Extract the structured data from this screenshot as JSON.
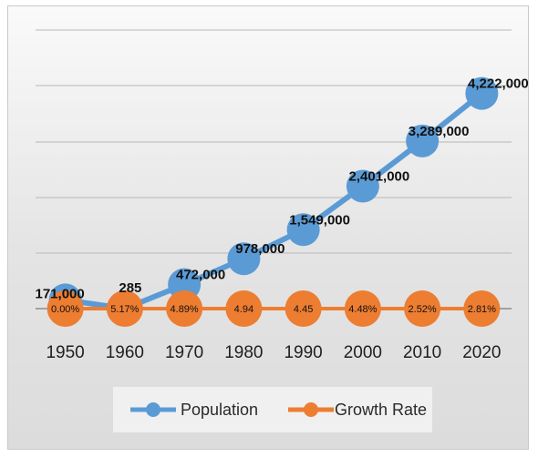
{
  "chart_data": {
    "type": "line",
    "title": "",
    "xlabel": "",
    "ylabel": "",
    "grid": true,
    "legend_position": "bottom",
    "x": [
      "1950",
      "1960",
      "1970",
      "1980",
      "1990",
      "2000",
      "2010",
      "2020"
    ],
    "series": [
      {
        "name": "Population",
        "color": "#5b9bd5",
        "values": [
          171000,
          285,
          472000,
          978000,
          1549000,
          2401000,
          3289000,
          4222000
        ],
        "labels": [
          "171,000",
          "285",
          "472,000",
          "978,000",
          "1,549,000",
          "2,401,000",
          "3,289,000",
          "4,222,000"
        ]
      },
      {
        "name": "Growth Rate",
        "color": "#ed7d31",
        "values": [
          0.0,
          5.17,
          4.89,
          4.94,
          4.45,
          4.48,
          2.52,
          2.81
        ],
        "labels": [
          "0.00%",
          "5.17%",
          "4.89%",
          "4.94",
          "4.45",
          "4.48%",
          "2.52%",
          "2.81%"
        ]
      }
    ],
    "ylim": [
      0,
      4500000
    ]
  }
}
